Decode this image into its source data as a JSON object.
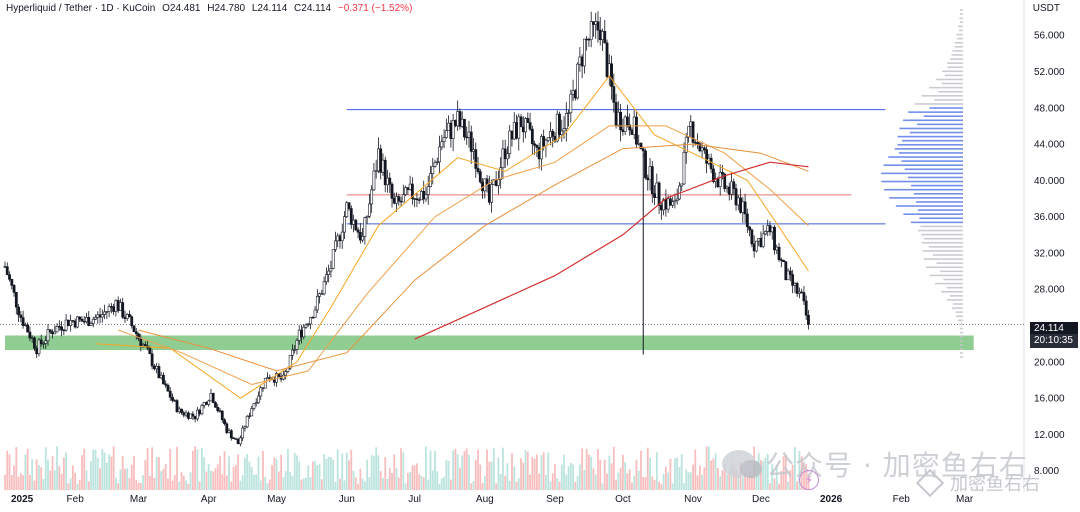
{
  "header": {
    "symbol": "Hyperliquid / Tether · 1D · KuCoin",
    "open": "O24.481",
    "high": "H24.780",
    "low": "L24.114",
    "close": "C24.114",
    "change": "−0.371 (−1.52%)",
    "unit": "USDT"
  },
  "price_tag": {
    "price": "24.114",
    "countdown": "20:10:35"
  },
  "watermark": {
    "text": "公众号 · 加密鱼右右",
    "text2": "加密鱼右右"
  },
  "colors": {
    "up": "#131722",
    "down": "#131722",
    "ma_fast": "#f5a623",
    "ma_mid": "#f0a04b",
    "ma_slow": "#e8903a",
    "ma_long": "#d32f2f",
    "level_blue": "#3f5bd6",
    "level_red": "#e57373",
    "support_zone": "#7cc47f",
    "volume_profile_va": "#5b7be8",
    "volume_profile": "#c4c6cc",
    "volume_up": "#9fd8d0",
    "volume_down": "#f5a3a3"
  },
  "chart_data": {
    "type": "candlestick",
    "title": "Hyperliquid / Tether · 1D · KuCoin",
    "ylabel": "USDT",
    "ylim": [
      6.2,
      59.0
    ],
    "y_ticks": [
      "56.000",
      "52.000",
      "48.000",
      "44.000",
      "40.000",
      "36.000",
      "32.000",
      "28.000",
      "24.000",
      "20.000",
      "16.000",
      "12.000",
      "8.000"
    ],
    "x_ticks": [
      "2025",
      "Feb",
      "Mar",
      "Apr",
      "May",
      "Jun",
      "Jul",
      "Aug",
      "Sep",
      "Oct",
      "Nov",
      "Dec",
      "2026",
      "Feb",
      "Mar"
    ],
    "x_range": [
      "2025-01-01",
      "2026-03-10"
    ],
    "horizontal_levels": [
      {
        "price": 47.8,
        "color": "blue",
        "start": "2025-06-01",
        "end": "2026-01-25"
      },
      {
        "price": 38.4,
        "color": "red",
        "start": "2025-06-01",
        "end": "2026-01-10"
      },
      {
        "price": 35.2,
        "color": "blue",
        "start": "2025-06-01",
        "end": "2026-01-25"
      }
    ],
    "support_zone": {
      "low": 21.3,
      "high": 22.9,
      "start": "2025-01-01",
      "end": "2026-03-05"
    },
    "last_price": 24.114,
    "price_path": [
      [
        "2025-01-01",
        30.5
      ],
      [
        "2025-01-08",
        25.0
      ],
      [
        "2025-01-15",
        21.5
      ],
      [
        "2025-01-22",
        23.5
      ],
      [
        "2025-01-29",
        24.5
      ],
      [
        "2025-02-05",
        24.5
      ],
      [
        "2025-02-12",
        25.0
      ],
      [
        "2025-02-19",
        26.5
      ],
      [
        "2025-02-26",
        24.0
      ],
      [
        "2025-03-05",
        21.0
      ],
      [
        "2025-03-12",
        17.5
      ],
      [
        "2025-03-19",
        14.5
      ],
      [
        "2025-03-26",
        14.0
      ],
      [
        "2025-04-02",
        16.5
      ],
      [
        "2025-04-09",
        12.5
      ],
      [
        "2025-04-14",
        11.0
      ],
      [
        "2025-04-20",
        15.0
      ],
      [
        "2025-04-27",
        18.5
      ],
      [
        "2025-05-04",
        18.0
      ],
      [
        "2025-05-11",
        23.0
      ],
      [
        "2025-05-18",
        26.0
      ],
      [
        "2025-05-25",
        30.5
      ],
      [
        "2025-06-01",
        37.0
      ],
      [
        "2025-06-08",
        33.5
      ],
      [
        "2025-06-15",
        43.0
      ],
      [
        "2025-06-22",
        37.0
      ],
      [
        "2025-06-29",
        38.5
      ],
      [
        "2025-07-06",
        38.5
      ],
      [
        "2025-07-13",
        44.5
      ],
      [
        "2025-07-20",
        46.5
      ],
      [
        "2025-07-27",
        43.5
      ],
      [
        "2025-08-03",
        37.5
      ],
      [
        "2025-08-10",
        43.5
      ],
      [
        "2025-08-17",
        46.5
      ],
      [
        "2025-08-24",
        43.0
      ],
      [
        "2025-08-31",
        45.5
      ],
      [
        "2025-09-07",
        47.0
      ],
      [
        "2025-09-14",
        55.0
      ],
      [
        "2025-09-21",
        57.0
      ],
      [
        "2025-09-28",
        47.0
      ],
      [
        "2025-10-05",
        46.5
      ],
      [
        "2025-10-10",
        42.0
      ],
      [
        "2025-10-17",
        38.0
      ],
      [
        "2025-10-24",
        37.0
      ],
      [
        "2025-10-31",
        46.0
      ],
      [
        "2025-11-07",
        42.0
      ],
      [
        "2025-11-14",
        39.5
      ],
      [
        "2025-11-21",
        38.0
      ],
      [
        "2025-11-28",
        33.0
      ],
      [
        "2025-12-05",
        34.5
      ],
      [
        "2025-12-12",
        29.5
      ],
      [
        "2025-12-19",
        27.0
      ],
      [
        "2025-12-22",
        24.114
      ]
    ],
    "series": [
      {
        "type": "line",
        "values": [
          [
            "2025-02-10",
            22.0
          ],
          [
            "2025-03-15",
            21.5
          ],
          [
            "2025-04-15",
            16.0
          ],
          [
            "2025-05-10",
            20.0
          ],
          [
            "2025-05-25",
            26.0
          ],
          [
            "2025-06-15",
            35.0
          ],
          [
            "2025-07-20",
            42.5
          ],
          [
            "2025-08-10",
            41.0
          ],
          [
            "2025-09-05",
            45.0
          ],
          [
            "2025-09-25",
            51.5
          ],
          [
            "2025-10-15",
            45.0
          ],
          [
            "2025-11-05",
            42.5
          ],
          [
            "2025-11-25",
            40.0
          ],
          [
            "2025-12-10",
            34.5
          ],
          [
            "2025-12-22",
            30.0
          ]
        ]
      },
      {
        "type": "line",
        "values": [
          [
            "2025-02-20",
            23.5
          ],
          [
            "2025-03-20",
            21.0
          ],
          [
            "2025-04-20",
            17.5
          ],
          [
            "2025-05-15",
            19.0
          ],
          [
            "2025-06-10",
            27.5
          ],
          [
            "2025-07-10",
            36.0
          ],
          [
            "2025-08-05",
            40.0
          ],
          [
            "2025-09-01",
            42.0
          ],
          [
            "2025-09-25",
            46.0
          ],
          [
            "2025-10-20",
            46.0
          ],
          [
            "2025-11-15",
            43.0
          ],
          [
            "2025-12-05",
            39.0
          ],
          [
            "2025-12-22",
            35.0
          ]
        ]
      },
      {
        "type": "line",
        "values": [
          [
            "2025-03-01",
            23.5
          ],
          [
            "2025-04-01",
            21.5
          ],
          [
            "2025-05-01",
            19.0
          ],
          [
            "2025-06-01",
            21.0
          ],
          [
            "2025-07-01",
            29.0
          ],
          [
            "2025-08-01",
            35.0
          ],
          [
            "2025-09-01",
            39.5
          ],
          [
            "2025-10-01",
            43.5
          ],
          [
            "2025-11-01",
            44.0
          ],
          [
            "2025-12-01",
            43.0
          ],
          [
            "2025-12-22",
            41.0
          ]
        ]
      },
      {
        "type": "line",
        "values": [
          [
            "2025-07-01",
            22.5
          ],
          [
            "2025-08-01",
            26.0
          ],
          [
            "2025-09-01",
            29.5
          ],
          [
            "2025-10-01",
            34.0
          ],
          [
            "2025-10-20",
            38.0
          ],
          [
            "2025-11-15",
            40.5
          ],
          [
            "2025-12-05",
            42.0
          ],
          [
            "2025-12-22",
            41.5
          ]
        ]
      }
    ],
    "volume_profile": {
      "value_area": [
        35.0,
        48.0
      ],
      "price_range": [
        20.5,
        59.0
      ]
    },
    "grid": false,
    "legend": "top-left"
  }
}
